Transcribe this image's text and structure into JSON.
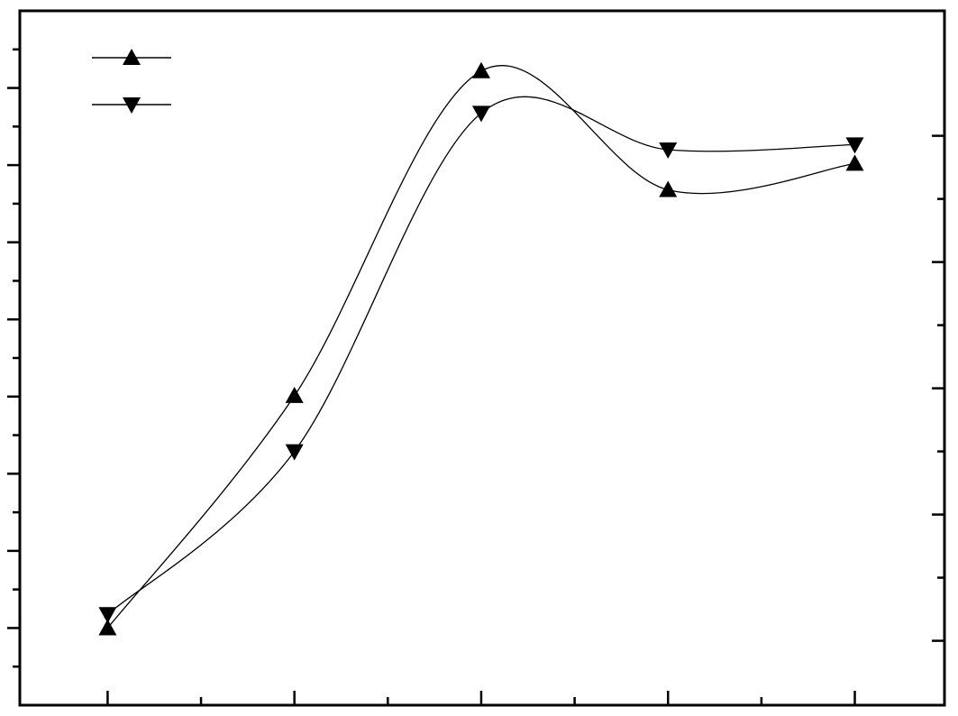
{
  "chart_data": {
    "type": "line",
    "x": [
      1,
      2,
      3,
      4,
      5
    ],
    "xlim": [
      0.53,
      5.48
    ],
    "xticks": [
      1,
      2,
      3,
      4,
      5
    ],
    "xminorticks": [
      1.5,
      2.5,
      3.5,
      4.5
    ],
    "ylim": [
      -1,
      8
    ],
    "yticks": [
      0,
      1,
      2,
      3,
      4,
      5,
      6,
      7
    ],
    "yminorticks": [
      -0.5,
      0.5,
      1.5,
      2.5,
      3.5,
      4.5,
      5.5,
      6.5,
      7.5
    ],
    "y2lim": [
      -0.51,
      4.99
    ],
    "y2ticks": [
      0,
      1,
      2,
      3,
      4
    ],
    "y2minorticks": [
      0.5,
      1.5,
      2.5,
      3.5
    ],
    "series": [
      {
        "color": "#000000",
        "marker": "triangle-up",
        "values": [
          0,
          3.01,
          7.22,
          5.68,
          6.02
        ]
      },
      {
        "color": "#000000",
        "marker": "triangle-down",
        "axis": "y2",
        "values": [
          0.21,
          1.5,
          4.18,
          3.89,
          3.93
        ]
      }
    ],
    "legend": "upper left"
  }
}
